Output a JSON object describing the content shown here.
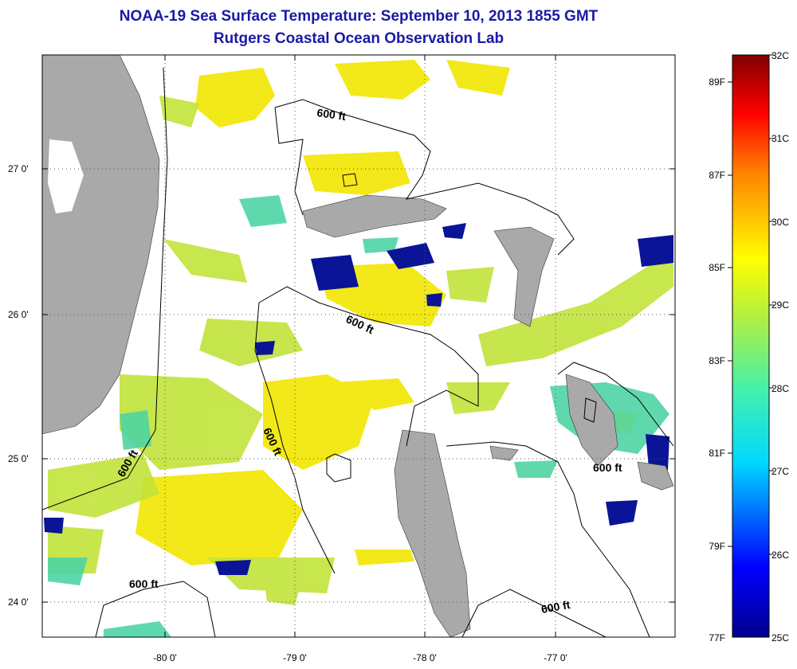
{
  "title": "NOAA-19 Sea Surface Temperature:  September 10, 2013 1855 GMT",
  "subtitle": "Rutgers Coastal Ocean Observation Lab",
  "latitude_labels": [
    "27 0'",
    "26 0'",
    "25 0'",
    "24 0'"
  ],
  "longitude_labels": [
    "-80 0'",
    "-79 0'",
    "-78 0'",
    "-77 0'"
  ],
  "contour_labels": [
    "600 ft",
    "600 ft",
    "600 ft",
    "600 ft",
    "600 ft",
    "600 ft"
  ],
  "colorbar": {
    "celsius_labels": [
      "32C",
      "31C",
      "30C",
      "29C",
      "28C",
      "27C",
      "26C",
      "25C"
    ],
    "fahrenheit_labels": [
      "89F",
      "87F",
      "85F",
      "83F",
      "81F",
      "79F",
      "77F"
    ]
  },
  "colors": {
    "land": "#a9a9a9",
    "title": "#1a1aa6",
    "warm": "#f5e800",
    "mid": "#c8e632",
    "cool": "#50d2a0",
    "cold": "#0a1496"
  }
}
